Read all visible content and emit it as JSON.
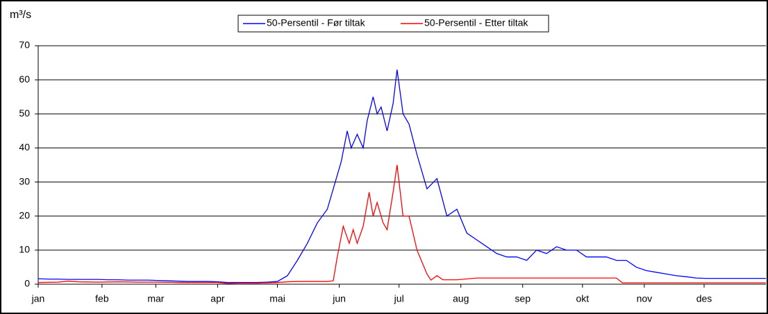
{
  "chart_data": {
    "type": "line",
    "y_label": "m³/s",
    "xlim": [
      0,
      365
    ],
    "xticks": [
      {
        "value": 0,
        "label": "jan"
      },
      {
        "value": 32,
        "label": "feb"
      },
      {
        "value": 59,
        "label": "mar"
      },
      {
        "value": 90,
        "label": "apr"
      },
      {
        "value": 120,
        "label": "mai"
      },
      {
        "value": 151,
        "label": "jun"
      },
      {
        "value": 181,
        "label": "jul"
      },
      {
        "value": 212,
        "label": "aug"
      },
      {
        "value": 243,
        "label": "sep"
      },
      {
        "value": 273,
        "label": "okt"
      },
      {
        "value": 304,
        "label": "nov"
      },
      {
        "value": 334,
        "label": "des"
      }
    ],
    "ylim": [
      0,
      70
    ],
    "yticks": [
      0,
      10,
      20,
      30,
      40,
      50,
      60,
      70
    ],
    "grid": true,
    "legend": "top",
    "series": [
      {
        "name": "50-Persentil - Før tiltak",
        "color": "#0000ff",
        "x": [
          0,
          5,
          10,
          15,
          20,
          25,
          30,
          35,
          40,
          45,
          50,
          55,
          60,
          65,
          70,
          75,
          80,
          85,
          90,
          95,
          100,
          105,
          110,
          115,
          120,
          125,
          130,
          135,
          140,
          145,
          150,
          152,
          155,
          157,
          160,
          163,
          165,
          168,
          170,
          172,
          175,
          178,
          180,
          183,
          186,
          190,
          195,
          200,
          205,
          210,
          215,
          220,
          225,
          230,
          235,
          240,
          245,
          250,
          255,
          260,
          265,
          270,
          275,
          280,
          285,
          290,
          295,
          300,
          305,
          310,
          315,
          320,
          325,
          330,
          335,
          340,
          345,
          350,
          355,
          360,
          365
        ],
        "values": [
          1.6,
          1.5,
          1.5,
          1.4,
          1.4,
          1.4,
          1.4,
          1.3,
          1.3,
          1.2,
          1.2,
          1.2,
          1.1,
          1.0,
          0.9,
          0.8,
          0.8,
          0.8,
          0.7,
          0.5,
          0.5,
          0.5,
          0.5,
          0.6,
          0.8,
          2.5,
          7,
          12,
          18,
          22,
          32,
          36,
          45,
          40,
          44,
          40,
          48,
          55,
          50,
          52,
          45,
          53,
          63,
          50,
          47,
          38,
          28,
          31,
          20,
          22,
          15,
          13,
          11,
          9,
          8,
          8,
          7,
          10,
          9,
          11,
          10,
          10,
          8,
          8,
          8,
          7,
          7,
          5,
          4,
          3.5,
          3,
          2.5,
          2.2,
          1.8,
          1.7,
          1.7,
          1.7,
          1.7,
          1.7,
          1.7,
          1.7
        ]
      },
      {
        "name": "50-Persentil - Etter tiltak",
        "color": "#ff0000",
        "x": [
          0,
          10,
          15,
          20,
          30,
          40,
          50,
          60,
          70,
          80,
          90,
          95,
          100,
          110,
          120,
          125,
          130,
          140,
          145,
          148,
          150,
          153,
          156,
          158,
          160,
          163,
          166,
          168,
          170,
          173,
          175,
          178,
          180,
          183,
          186,
          190,
          195,
          197,
          200,
          203,
          210,
          220,
          240,
          260,
          280,
          290,
          293,
          300,
          330,
          365
        ],
        "values": [
          0.5,
          0.6,
          0.9,
          0.7,
          0.6,
          0.7,
          0.6,
          0.6,
          0.5,
          0.5,
          0.5,
          0.2,
          0.3,
          0.3,
          0.5,
          0.7,
          0.8,
          0.8,
          0.8,
          1,
          8,
          17,
          12,
          16,
          12,
          17,
          27,
          20,
          24,
          18,
          16,
          27,
          35,
          20,
          20,
          10,
          3,
          1.2,
          2.5,
          1.3,
          1.3,
          1.8,
          1.8,
          1.8,
          1.8,
          1.8,
          0.4,
          0.4,
          0.4,
          0.4
        ]
      }
    ]
  }
}
